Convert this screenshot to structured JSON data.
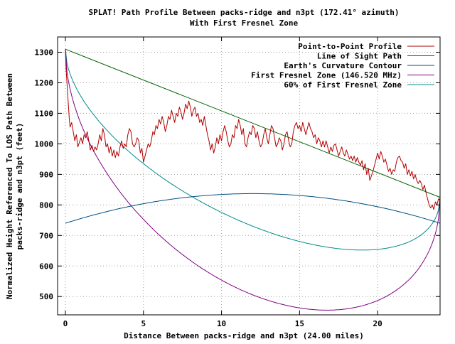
{
  "chart_data": {
    "type": "line",
    "title": "SPLAT! Path Profile Between packs-ridge and n3pt (172.41° azimuth)",
    "subtitle": "With First Fresnel Zone",
    "xlabel": "Distance Between packs-ridge and n3pt (24.00 miles)",
    "ylabel_line1": "Normalized Height Referenced To LOS Path Between",
    "ylabel_line2": "packs-ridge and n3pt (feet)",
    "xlim": [
      -0.5,
      24.0
    ],
    "ylim": [
      440,
      1350
    ],
    "x_ticks": [
      0,
      5,
      10,
      15,
      20
    ],
    "y_ticks": [
      500,
      600,
      700,
      800,
      900,
      1000,
      1100,
      1200,
      1300
    ],
    "grid": true,
    "legend_position": "top-right",
    "series": [
      {
        "name": "Point-to-Point Profile",
        "color": "#ff0000",
        "darkColor": "#b00000",
        "points": [
          [
            0.0,
            1305
          ],
          [
            0.05,
            1240
          ],
          [
            0.1,
            1200
          ],
          [
            0.15,
            1160
          ],
          [
            0.2,
            1120
          ],
          [
            0.25,
            1080
          ],
          [
            0.3,
            1055
          ],
          [
            0.4,
            1070
          ],
          [
            0.5,
            1040
          ],
          [
            0.6,
            1010
          ],
          [
            0.7,
            1030
          ],
          [
            0.8,
            990
          ],
          [
            0.9,
            1005
          ],
          [
            1.0,
            1020
          ],
          [
            1.1,
            1000
          ],
          [
            1.2,
            1030
          ],
          [
            1.3,
            1020
          ],
          [
            1.4,
            1040
          ],
          [
            1.5,
            1010
          ],
          [
            1.6,
            980
          ],
          [
            1.7,
            995
          ],
          [
            1.8,
            975
          ],
          [
            1.9,
            990
          ],
          [
            2.0,
            980
          ],
          [
            2.1,
            1000
          ],
          [
            2.2,
            1030
          ],
          [
            2.3,
            1010
          ],
          [
            2.4,
            1050
          ],
          [
            2.5,
            1030
          ],
          [
            2.6,
            990
          ],
          [
            2.7,
            1000
          ],
          [
            2.8,
            970
          ],
          [
            2.9,
            990
          ],
          [
            3.0,
            960
          ],
          [
            3.1,
            980
          ],
          [
            3.2,
            955
          ],
          [
            3.3,
            975
          ],
          [
            3.4,
            960
          ],
          [
            3.5,
            990
          ],
          [
            3.6,
            1010
          ],
          [
            3.7,
            985
          ],
          [
            3.8,
            1000
          ],
          [
            3.9,
            990
          ],
          [
            4.0,
            1030
          ],
          [
            4.1,
            1050
          ],
          [
            4.2,
            1040
          ],
          [
            4.3,
            1000
          ],
          [
            4.4,
            990
          ],
          [
            4.5,
            1000
          ],
          [
            4.6,
            1020
          ],
          [
            4.7,
            1010
          ],
          [
            4.8,
            970
          ],
          [
            4.9,
            985
          ],
          [
            5.0,
            940
          ],
          [
            5.1,
            960
          ],
          [
            5.2,
            980
          ],
          [
            5.3,
            1000
          ],
          [
            5.4,
            990
          ],
          [
            5.5,
            1010
          ],
          [
            5.6,
            1040
          ],
          [
            5.7,
            1030
          ],
          [
            5.8,
            1060
          ],
          [
            5.9,
            1050
          ],
          [
            6.0,
            1080
          ],
          [
            6.1,
            1065
          ],
          [
            6.2,
            1090
          ],
          [
            6.3,
            1070
          ],
          [
            6.4,
            1040
          ],
          [
            6.5,
            1060
          ],
          [
            6.6,
            1090
          ],
          [
            6.7,
            1080
          ],
          [
            6.8,
            1110
          ],
          [
            6.9,
            1090
          ],
          [
            7.0,
            1070
          ],
          [
            7.1,
            1100
          ],
          [
            7.2,
            1090
          ],
          [
            7.3,
            1120
          ],
          [
            7.4,
            1105
          ],
          [
            7.5,
            1080
          ],
          [
            7.6,
            1100
          ],
          [
            7.7,
            1130
          ],
          [
            7.8,
            1115
          ],
          [
            7.9,
            1140
          ],
          [
            8.0,
            1120
          ],
          [
            8.1,
            1090
          ],
          [
            8.2,
            1110
          ],
          [
            8.3,
            1120
          ],
          [
            8.4,
            1090
          ],
          [
            8.5,
            1100
          ],
          [
            8.6,
            1070
          ],
          [
            8.7,
            1080
          ],
          [
            8.8,
            1060
          ],
          [
            8.9,
            1090
          ],
          [
            9.0,
            1060
          ],
          [
            9.1,
            1030
          ],
          [
            9.2,
            1010
          ],
          [
            9.3,
            980
          ],
          [
            9.4,
            1000
          ],
          [
            9.5,
            970
          ],
          [
            9.6,
            990
          ],
          [
            9.7,
            1020
          ],
          [
            9.8,
            1000
          ],
          [
            9.9,
            1030
          ],
          [
            10.0,
            1010
          ],
          [
            10.1,
            1040
          ],
          [
            10.2,
            1060
          ],
          [
            10.3,
            1040
          ],
          [
            10.4,
            1010
          ],
          [
            10.5,
            990
          ],
          [
            10.6,
            1000
          ],
          [
            10.7,
            1030
          ],
          [
            10.8,
            1020
          ],
          [
            10.9,
            1060
          ],
          [
            11.0,
            1050
          ],
          [
            11.1,
            1080
          ],
          [
            11.2,
            1060
          ],
          [
            11.3,
            1030
          ],
          [
            11.4,
            1050
          ],
          [
            11.5,
            1000
          ],
          [
            11.6,
            990
          ],
          [
            11.7,
            1020
          ],
          [
            11.8,
            1040
          ],
          [
            11.9,
            1030
          ],
          [
            12.0,
            1060
          ],
          [
            12.1,
            1050
          ],
          [
            12.2,
            1020
          ],
          [
            12.3,
            1040
          ],
          [
            12.4,
            1010
          ],
          [
            12.5,
            990
          ],
          [
            12.6,
            1000
          ],
          [
            12.7,
            1030
          ],
          [
            12.8,
            1050
          ],
          [
            12.9,
            1020
          ],
          [
            13.0,
            1000
          ],
          [
            13.1,
            1030
          ],
          [
            13.2,
            1060
          ],
          [
            13.3,
            1050
          ],
          [
            13.4,
            1020
          ],
          [
            13.5,
            990
          ],
          [
            13.6,
            1000
          ],
          [
            13.7,
            1020
          ],
          [
            13.8,
            1010
          ],
          [
            13.9,
            980
          ],
          [
            14.0,
            1000
          ],
          [
            14.1,
            1030
          ],
          [
            14.2,
            1040
          ],
          [
            14.3,
            1010
          ],
          [
            14.4,
            990
          ],
          [
            14.5,
            1000
          ],
          [
            14.6,
            1040
          ],
          [
            14.7,
            1060
          ],
          [
            14.8,
            1070
          ],
          [
            14.9,
            1050
          ],
          [
            15.0,
            1060
          ],
          [
            15.1,
            1040
          ],
          [
            15.2,
            1070
          ],
          [
            15.3,
            1050
          ],
          [
            15.4,
            1030
          ],
          [
            15.5,
            1050
          ],
          [
            15.6,
            1070
          ],
          [
            15.7,
            1050
          ],
          [
            15.8,
            1040
          ],
          [
            15.9,
            1020
          ],
          [
            16.0,
            1030
          ],
          [
            16.1,
            1000
          ],
          [
            16.2,
            1020
          ],
          [
            16.3,
            1010
          ],
          [
            16.4,
            990
          ],
          [
            16.5,
            1010
          ],
          [
            16.6,
            990
          ],
          [
            16.7,
            1010
          ],
          [
            16.8,
            990
          ],
          [
            16.9,
            970
          ],
          [
            17.0,
            990
          ],
          [
            17.1,
            975
          ],
          [
            17.2,
            995
          ],
          [
            17.3,
            1000
          ],
          [
            17.4,
            980
          ],
          [
            17.5,
            960
          ],
          [
            17.6,
            975
          ],
          [
            17.7,
            990
          ],
          [
            17.8,
            970
          ],
          [
            17.9,
            960
          ],
          [
            18.0,
            980
          ],
          [
            18.1,
            965
          ],
          [
            18.2,
            950
          ],
          [
            18.3,
            960
          ],
          [
            18.4,
            945
          ],
          [
            18.5,
            960
          ],
          [
            18.6,
            940
          ],
          [
            18.7,
            955
          ],
          [
            18.8,
            940
          ],
          [
            18.9,
            930
          ],
          [
            19.0,
            945
          ],
          [
            19.1,
            915
          ],
          [
            19.2,
            935
          ],
          [
            19.3,
            900
          ],
          [
            19.4,
            920
          ],
          [
            19.5,
            880
          ],
          [
            19.6,
            895
          ],
          [
            19.7,
            910
          ],
          [
            19.8,
            930
          ],
          [
            19.9,
            950
          ],
          [
            20.0,
            970
          ],
          [
            20.1,
            950
          ],
          [
            20.2,
            975
          ],
          [
            20.3,
            960
          ],
          [
            20.4,
            940
          ],
          [
            20.5,
            950
          ],
          [
            20.6,
            930
          ],
          [
            20.7,
            910
          ],
          [
            20.8,
            920
          ],
          [
            20.9,
            900
          ],
          [
            21.0,
            915
          ],
          [
            21.1,
            910
          ],
          [
            21.2,
            940
          ],
          [
            21.3,
            955
          ],
          [
            21.4,
            960
          ],
          [
            21.5,
            945
          ],
          [
            21.6,
            940
          ],
          [
            21.7,
            920
          ],
          [
            21.8,
            935
          ],
          [
            21.9,
            900
          ],
          [
            22.0,
            915
          ],
          [
            22.1,
            895
          ],
          [
            22.2,
            910
          ],
          [
            22.3,
            885
          ],
          [
            22.4,
            900
          ],
          [
            22.5,
            880
          ],
          [
            22.6,
            870
          ],
          [
            22.7,
            880
          ],
          [
            22.8,
            870
          ],
          [
            22.9,
            850
          ],
          [
            23.0,
            865
          ],
          [
            23.1,
            840
          ],
          [
            23.2,
            820
          ],
          [
            23.3,
            800
          ],
          [
            23.4,
            790
          ],
          [
            23.5,
            800
          ],
          [
            23.6,
            785
          ],
          [
            23.7,
            810
          ],
          [
            23.8,
            800
          ],
          [
            23.9,
            820
          ],
          [
            24.0,
            815
          ]
        ]
      },
      {
        "name": "Line of Sight Path",
        "color": "#00a000",
        "darkColor": "#006000",
        "points": [
          [
            0,
            1310
          ],
          [
            24,
            825
          ]
        ]
      },
      {
        "name": "Earth's Curvature Contour",
        "color": "#0080c0",
        "darkColor": "#004f80",
        "formula": "curvature",
        "y0": 740,
        "y1": 740,
        "peak": 837
      },
      {
        "name": "First Fresnel Zone (146.520 MHz)",
        "color": "#c000c0",
        "darkColor": "#800080",
        "formula": "fresnel",
        "fraction": 1.0
      },
      {
        "name": "60% of First Fresnel Zone",
        "color": "#00e0e0",
        "darkColor": "#008c8c",
        "formula": "fresnel",
        "fraction": 0.6
      }
    ],
    "fresnel_model": {
      "los_start": 1310,
      "los_end": 825,
      "radius_scale": 562
    }
  }
}
